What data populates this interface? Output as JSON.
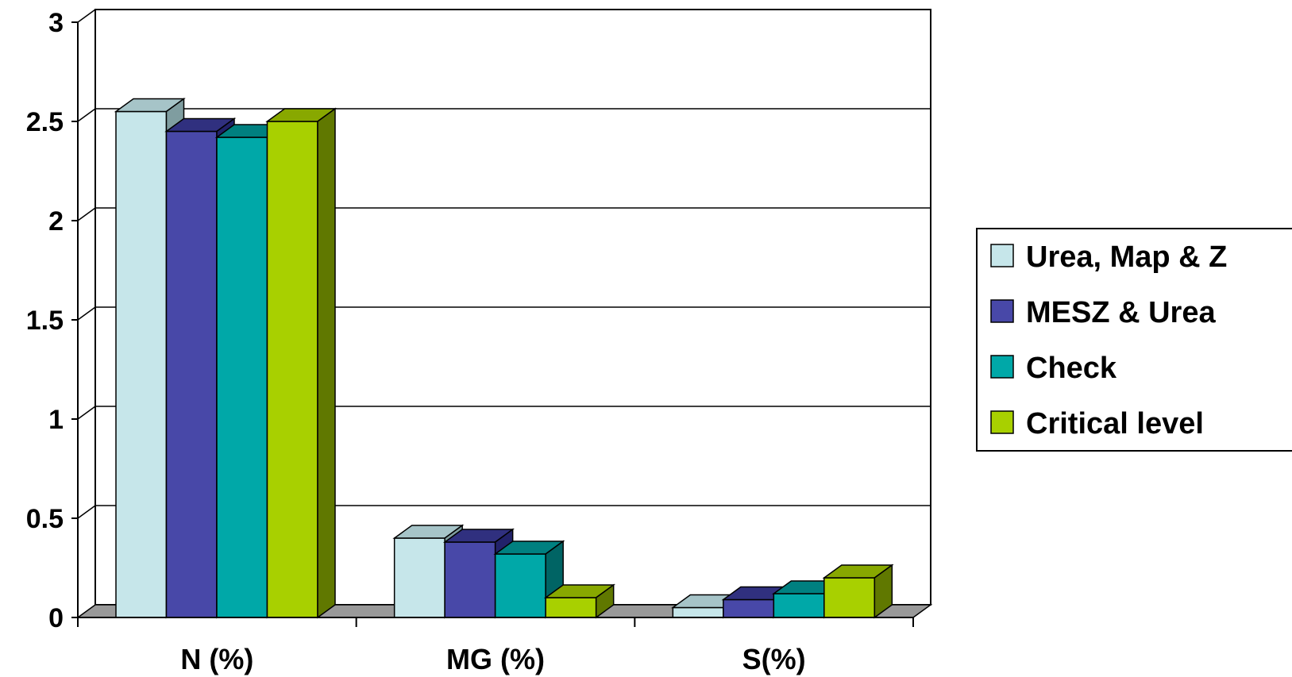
{
  "chart_data": {
    "type": "bar",
    "title": "",
    "xlabel": "",
    "ylabel": "",
    "categories": [
      "N (%)",
      "MG (%)",
      "S(%)"
    ],
    "series": [
      {
        "name": "Urea, Map & Z",
        "values": [
          2.55,
          0.4,
          0.05
        ],
        "color": "#C6E6EA",
        "side": "#7F9DA0",
        "top": "#A6C4C8"
      },
      {
        "name": "MESZ & Urea",
        "values": [
          2.45,
          0.38,
          0.09
        ],
        "color": "#4848A8",
        "side": "#22226A",
        "top": "#30307F"
      },
      {
        "name": "Check",
        "values": [
          2.42,
          0.32,
          0.12
        ],
        "color": "#00A8A8",
        "side": "#006464",
        "top": "#008080"
      },
      {
        "name": "Critical level",
        "values": [
          2.5,
          0.1,
          0.2
        ],
        "color": "#A8D000",
        "side": "#607800",
        "top": "#88A800"
      }
    ],
    "yticks": [
      "0",
      "0.5",
      "1",
      "1.5",
      "2",
      "2.5",
      "3"
    ],
    "ylim": [
      0,
      3
    ],
    "grid": true,
    "legend": "right",
    "floor_color": "#999999"
  }
}
